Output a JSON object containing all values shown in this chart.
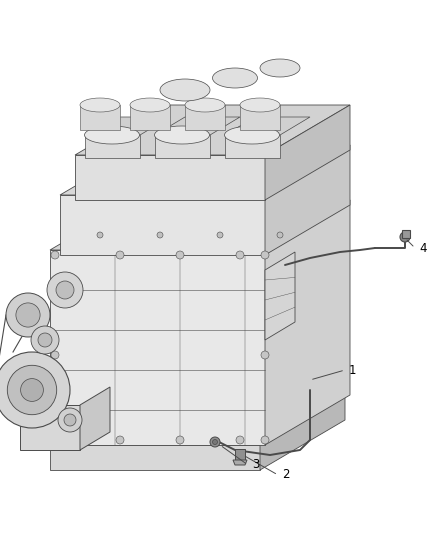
{
  "bg_color": "#ffffff",
  "line_color": "#4a4a4a",
  "label_color": "#000000",
  "fig_width": 4.38,
  "fig_height": 5.33,
  "dpi": 100,
  "engine_lw": 0.6,
  "hose_lw": 1.2,
  "label_fontsize": 8.5
}
